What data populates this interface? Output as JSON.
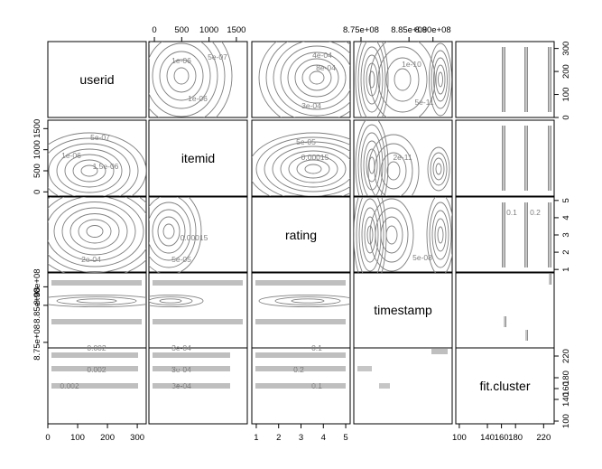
{
  "chart_data": {
    "type": "contour-pairs-matrix",
    "variables": [
      "userid",
      "itemid",
      "rating",
      "timestamp",
      "fit.cluster"
    ],
    "axes": {
      "userid": {
        "ticks": [
          "0",
          "100",
          "200",
          "300"
        ],
        "tick_values": [
          0,
          100,
          200,
          300
        ],
        "range": [
          0,
          330
        ]
      },
      "itemid": {
        "ticks": [
          "0",
          "500",
          "1000",
          "1500"
        ],
        "tick_values": [
          0,
          500,
          1000,
          1500
        ],
        "range": [
          -100,
          1700
        ]
      },
      "rating": {
        "ticks": [
          "1",
          "2",
          "3",
          "4",
          "5"
        ],
        "tick_values": [
          1,
          2,
          3,
          4,
          5
        ],
        "range": [
          0.8,
          5.2
        ]
      },
      "timestamp": {
        "ticks": [
          "8.75e+08",
          "8.85e+08",
          "8.90e+08"
        ],
        "tick_values": [
          875000000,
          885000000,
          890000000
        ],
        "range": [
          873500000,
          894000000
        ]
      },
      "fit.cluster": {
        "ticks": [
          "100",
          "140",
          "160",
          "180",
          "220"
        ],
        "tick_values": [
          100,
          140,
          160,
          180,
          220
        ],
        "range": [
          95,
          235
        ]
      }
    },
    "contour_labels": {
      "userid|itemid": [
        "1e-06",
        "5e-07",
        "1e-06"
      ],
      "userid|rating": [
        "4e-04",
        "8e-04",
        "3e-04"
      ],
      "userid|timestamp": [
        "1e-10",
        "5e-11"
      ],
      "itemid|userid": [
        "5e-07",
        "1e-06",
        "1.5e-06"
      ],
      "itemid|rating": [
        "5e-05",
        "0.00015"
      ],
      "itemid|timestamp": [
        "2e-11"
      ],
      "rating|userid": [
        "2e-04"
      ],
      "rating|itemid": [
        "5e-05",
        "0.00015"
      ],
      "rating|timestamp": [
        "5e-08"
      ],
      "rating|fit.cluster": [
        "0.1",
        "0.2"
      ],
      "fit.cluster|userid": [
        "0.002"
      ],
      "fit.cluster|itemid": [
        "3e-04"
      ],
      "fit.cluster|rating": [
        "0.1",
        "0.2"
      ]
    },
    "grid": false,
    "legend": "none",
    "line_color": "#7f7f7f"
  }
}
